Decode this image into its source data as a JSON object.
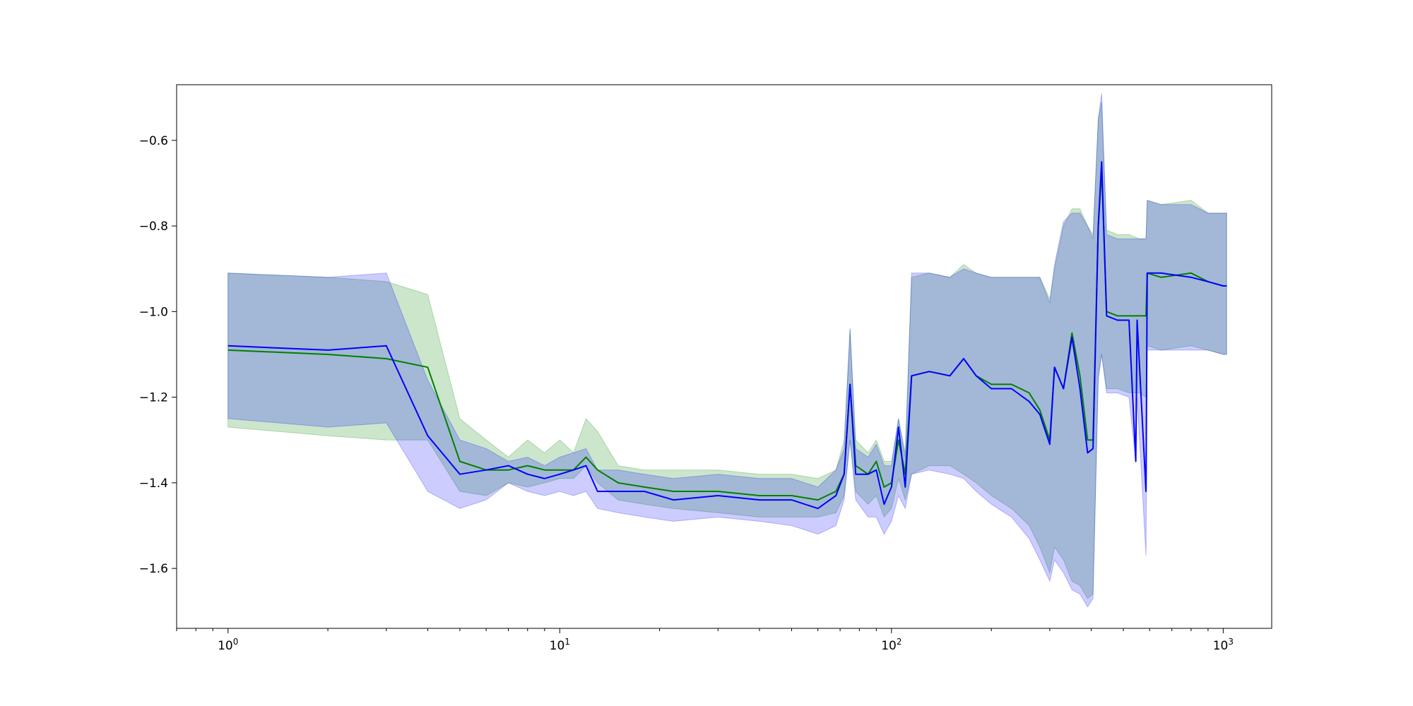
{
  "chart_data": {
    "type": "line",
    "title": "",
    "xlabel": "",
    "ylabel": "",
    "xscale": "log",
    "xlim": [
      0.7,
      1400
    ],
    "ylim": [
      -1.74,
      -0.47
    ],
    "grid": false,
    "legend": "none",
    "x_major_ticks": [
      {
        "value": 1,
        "base": "10",
        "exp": "0"
      },
      {
        "value": 10,
        "base": "10",
        "exp": "1"
      },
      {
        "value": 100,
        "base": "10",
        "exp": "2"
      },
      {
        "value": 1000,
        "base": "10",
        "exp": "3"
      }
    ],
    "y_ticks": [
      {
        "value": -0.6,
        "label": "−0.6"
      },
      {
        "value": -0.8,
        "label": "−0.8"
      },
      {
        "value": -1.0,
        "label": "−1.0"
      },
      {
        "value": -1.2,
        "label": "−1.2"
      },
      {
        "value": -1.4,
        "label": "−1.4"
      },
      {
        "value": -1.6,
        "label": "−1.6"
      }
    ],
    "series": [
      {
        "color": "#008000",
        "band_color": "#008000",
        "band_opacity": 0.2,
        "points": [
          [
            1,
            -1.09,
            -1.27,
            -0.91
          ],
          [
            2,
            -1.1,
            -1.29,
            -0.92
          ],
          [
            3,
            -1.11,
            -1.3,
            -0.93
          ],
          [
            4,
            -1.13,
            -1.3,
            -0.96
          ],
          [
            5,
            -1.35,
            -1.42,
            -1.25
          ],
          [
            6,
            -1.37,
            -1.43,
            -1.3
          ],
          [
            7,
            -1.37,
            -1.4,
            -1.34
          ],
          [
            8,
            -1.36,
            -1.41,
            -1.3
          ],
          [
            9,
            -1.37,
            -1.4,
            -1.33
          ],
          [
            10,
            -1.37,
            -1.39,
            -1.3
          ],
          [
            11,
            -1.37,
            -1.39,
            -1.33
          ],
          [
            12,
            -1.34,
            -1.36,
            -1.25
          ],
          [
            13,
            -1.37,
            -1.4,
            -1.28
          ],
          [
            15,
            -1.4,
            -1.44,
            -1.36
          ],
          [
            18,
            -1.41,
            -1.45,
            -1.37
          ],
          [
            22,
            -1.42,
            -1.46,
            -1.37
          ],
          [
            30,
            -1.42,
            -1.47,
            -1.37
          ],
          [
            40,
            -1.43,
            -1.48,
            -1.38
          ],
          [
            50,
            -1.43,
            -1.48,
            -1.38
          ],
          [
            60,
            -1.44,
            -1.48,
            -1.39
          ],
          [
            68,
            -1.42,
            -1.47,
            -1.37
          ],
          [
            72,
            -1.38,
            -1.43,
            -1.3
          ],
          [
            75,
            -1.17,
            -1.3,
            -1.04
          ],
          [
            78,
            -1.36,
            -1.42,
            -1.3
          ],
          [
            85,
            -1.38,
            -1.45,
            -1.33
          ],
          [
            90,
            -1.35,
            -1.43,
            -1.3
          ],
          [
            95,
            -1.41,
            -1.48,
            -1.35
          ],
          [
            100,
            -1.4,
            -1.46,
            -1.35
          ],
          [
            105,
            -1.3,
            -1.39,
            -1.25
          ],
          [
            110,
            -1.38,
            -1.44,
            -1.33
          ],
          [
            115,
            -1.15,
            -1.38,
            -0.92
          ],
          [
            130,
            -1.14,
            -1.36,
            -0.91
          ],
          [
            150,
            -1.15,
            -1.36,
            -0.92
          ],
          [
            165,
            -1.11,
            -1.38,
            -0.89
          ],
          [
            180,
            -1.15,
            -1.4,
            -0.91
          ],
          [
            200,
            -1.17,
            -1.43,
            -0.92
          ],
          [
            230,
            -1.17,
            -1.46,
            -0.92
          ],
          [
            260,
            -1.19,
            -1.5,
            -0.92
          ],
          [
            280,
            -1.23,
            -1.55,
            -0.92
          ],
          [
            300,
            -1.3,
            -1.61,
            -0.97
          ],
          [
            310,
            -1.13,
            -1.55,
            -0.9
          ],
          [
            330,
            -1.18,
            -1.58,
            -0.8
          ],
          [
            350,
            -1.05,
            -1.63,
            -0.76
          ],
          [
            370,
            -1.15,
            -1.64,
            -0.76
          ],
          [
            390,
            -1.3,
            -1.67,
            -0.8
          ],
          [
            405,
            -1.3,
            -1.66,
            -0.82
          ],
          [
            420,
            -0.8,
            -1.15,
            -0.55
          ],
          [
            430,
            -0.67,
            -1.1,
            -0.51
          ],
          [
            445,
            -1.0,
            -1.18,
            -0.81
          ],
          [
            480,
            -1.01,
            -1.18,
            -0.82
          ],
          [
            520,
            -1.01,
            -1.19,
            -0.82
          ],
          [
            560,
            -1.01,
            -1.19,
            -0.83
          ],
          [
            585,
            -1.01,
            -1.2,
            -0.83
          ],
          [
            590,
            -0.91,
            -1.08,
            -0.74
          ],
          [
            650,
            -0.92,
            -1.09,
            -0.75
          ],
          [
            800,
            -0.91,
            -1.08,
            -0.74
          ],
          [
            900,
            -0.93,
            -1.09,
            -0.77
          ],
          [
            1000,
            -0.94,
            -1.1,
            -0.77
          ],
          [
            1024,
            -0.94,
            -1.1,
            -0.77
          ]
        ]
      },
      {
        "color": "#0000ff",
        "band_color": "#0000ff",
        "band_opacity": 0.2,
        "points": [
          [
            1,
            -1.08,
            -1.25,
            -0.91
          ],
          [
            2,
            -1.09,
            -1.27,
            -0.92
          ],
          [
            3,
            -1.08,
            -1.26,
            -0.91
          ],
          [
            4,
            -1.29,
            -1.42,
            -1.16
          ],
          [
            5,
            -1.38,
            -1.46,
            -1.3
          ],
          [
            6,
            -1.37,
            -1.44,
            -1.32
          ],
          [
            7,
            -1.36,
            -1.4,
            -1.35
          ],
          [
            8,
            -1.38,
            -1.42,
            -1.34
          ],
          [
            9,
            -1.39,
            -1.43,
            -1.36
          ],
          [
            10,
            -1.38,
            -1.42,
            -1.34
          ],
          [
            11,
            -1.37,
            -1.43,
            -1.33
          ],
          [
            12,
            -1.36,
            -1.42,
            -1.32
          ],
          [
            13,
            -1.42,
            -1.46,
            -1.37
          ],
          [
            15,
            -1.42,
            -1.47,
            -1.37
          ],
          [
            18,
            -1.42,
            -1.48,
            -1.38
          ],
          [
            22,
            -1.44,
            -1.49,
            -1.39
          ],
          [
            30,
            -1.43,
            -1.48,
            -1.38
          ],
          [
            40,
            -1.44,
            -1.49,
            -1.39
          ],
          [
            50,
            -1.44,
            -1.5,
            -1.39
          ],
          [
            60,
            -1.46,
            -1.52,
            -1.41
          ],
          [
            68,
            -1.43,
            -1.5,
            -1.37
          ],
          [
            72,
            -1.38,
            -1.44,
            -1.32
          ],
          [
            75,
            -1.17,
            -1.3,
            -1.04
          ],
          [
            78,
            -1.38,
            -1.44,
            -1.32
          ],
          [
            85,
            -1.38,
            -1.48,
            -1.34
          ],
          [
            90,
            -1.37,
            -1.48,
            -1.31
          ],
          [
            95,
            -1.45,
            -1.52,
            -1.36
          ],
          [
            100,
            -1.41,
            -1.49,
            -1.36
          ],
          [
            105,
            -1.27,
            -1.43,
            -1.25
          ],
          [
            110,
            -1.41,
            -1.46,
            -1.34
          ],
          [
            115,
            -1.15,
            -1.38,
            -0.91
          ],
          [
            130,
            -1.14,
            -1.37,
            -0.91
          ],
          [
            150,
            -1.15,
            -1.38,
            -0.92
          ],
          [
            165,
            -1.11,
            -1.39,
            -0.9
          ],
          [
            180,
            -1.15,
            -1.42,
            -0.91
          ],
          [
            200,
            -1.18,
            -1.45,
            -0.92
          ],
          [
            230,
            -1.18,
            -1.48,
            -0.92
          ],
          [
            260,
            -1.21,
            -1.53,
            -0.92
          ],
          [
            280,
            -1.24,
            -1.58,
            -0.92
          ],
          [
            300,
            -1.31,
            -1.63,
            -0.98
          ],
          [
            310,
            -1.13,
            -1.58,
            -0.89
          ],
          [
            330,
            -1.18,
            -1.61,
            -0.79
          ],
          [
            350,
            -1.06,
            -1.65,
            -0.77
          ],
          [
            370,
            -1.18,
            -1.66,
            -0.77
          ],
          [
            390,
            -1.33,
            -1.69,
            -0.8
          ],
          [
            405,
            -1.32,
            -1.67,
            -0.83
          ],
          [
            420,
            -0.8,
            -1.16,
            -0.55
          ],
          [
            430,
            -0.65,
            -1.1,
            -0.49
          ],
          [
            445,
            -1.01,
            -1.19,
            -0.82
          ],
          [
            480,
            -1.02,
            -1.19,
            -0.83
          ],
          [
            520,
            -1.02,
            -1.2,
            -0.83
          ],
          [
            545,
            -1.35,
            -1.35,
            -0.83
          ],
          [
            550,
            -1.02,
            -1.2,
            -0.83
          ],
          [
            585,
            -1.42,
            -1.57,
            -0.83
          ],
          [
            590,
            -0.91,
            -1.09,
            -0.74
          ],
          [
            650,
            -0.91,
            -1.09,
            -0.75
          ],
          [
            800,
            -0.92,
            -1.09,
            -0.75
          ],
          [
            900,
            -0.93,
            -1.09,
            -0.77
          ],
          [
            1000,
            -0.94,
            -1.1,
            -0.77
          ],
          [
            1024,
            -0.94,
            -1.1,
            -0.77
          ]
        ]
      }
    ]
  }
}
